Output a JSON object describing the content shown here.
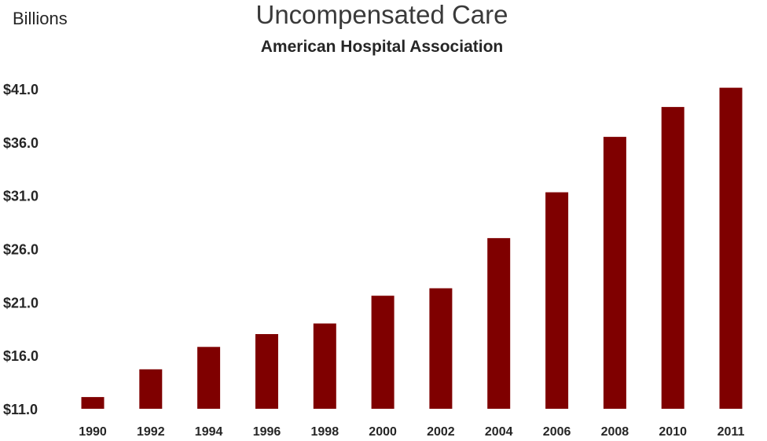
{
  "chart_data": {
    "type": "bar",
    "title": "Uncompensated Care",
    "subtitle": "American Hospital Association",
    "ylabel": "Billions",
    "xlabel": "",
    "categories": [
      "1990",
      "1992",
      "1994",
      "1996",
      "1998",
      "2000",
      "2002",
      "2004",
      "2006",
      "2008",
      "2010",
      "2011"
    ],
    "values": [
      12.1,
      14.7,
      16.8,
      18.0,
      19.0,
      21.6,
      22.3,
      27.0,
      31.3,
      36.5,
      39.3,
      41.1
    ],
    "ylim": [
      11.0,
      41.0
    ],
    "yticks": [
      "$11.0",
      "$16.0",
      "$21.0",
      "$26.0",
      "$31.0",
      "$36.0",
      "$41.0"
    ],
    "ytick_values": [
      11,
      16,
      21,
      26,
      31,
      36,
      41
    ],
    "grid": false,
    "legend": "none",
    "bar_color": "#7f0000"
  }
}
